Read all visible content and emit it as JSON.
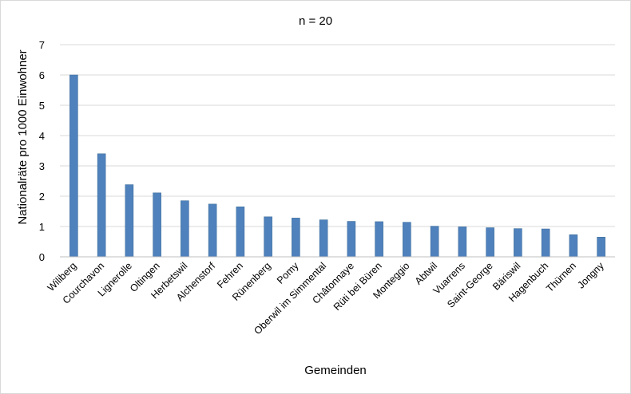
{
  "chart_data": {
    "type": "bar",
    "title": "n = 20",
    "xlabel": "Gemeinden",
    "ylabel": "Nationalräte pro 1000 Einwohner",
    "ylim": [
      0,
      7
    ],
    "yticks": [
      0,
      1,
      2,
      3,
      4,
      5,
      6,
      7
    ],
    "grid": true,
    "bar_color": "#4f81bd",
    "categories": [
      "Wiliberg",
      "Courchavon",
      "Lignerolle",
      "Oltingen",
      "Herbetswil",
      "Alchenstorf",
      "Fehren",
      "Rünenberg",
      "Pomy",
      "Oberwil im Simmental",
      "Châtonnaye",
      "Rüti bei Büren",
      "Monteggio",
      "Abtwil",
      "Vuarrens",
      "Saint-George",
      "Bäriswil",
      "Hagenbuch",
      "Thürnen",
      "Jongny"
    ],
    "values": [
      6.0,
      3.4,
      2.38,
      2.11,
      1.85,
      1.74,
      1.65,
      1.32,
      1.28,
      1.22,
      1.17,
      1.16,
      1.14,
      1.01,
      0.99,
      0.96,
      0.93,
      0.92,
      0.73,
      0.65
    ]
  }
}
